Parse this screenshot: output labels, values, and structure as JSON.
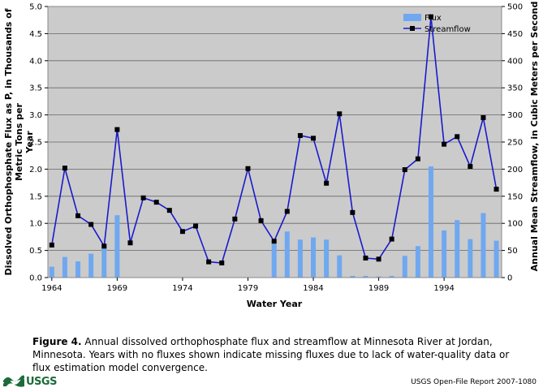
{
  "chart_data": {
    "type": "bar+line",
    "xlabel": "Water Year",
    "ylabel_left": "Dissolved Orthophosphate Flux as P, in Thousands of Metric Tons per Year",
    "ylabel_left_lines": [
      "Dissolved Orthophosphate Flux as P, in Thousands of",
      "Metric Tons per",
      "Year"
    ],
    "ylabel_right": "Annual Mean Streamflow, in Cubic Meters per Second",
    "ylim_left": [
      0,
      5
    ],
    "ylim_right": [
      0,
      500
    ],
    "xlim": [
      1963.7,
      1998.4
    ],
    "x_ticks": [
      1964,
      1969,
      1974,
      1979,
      1984,
      1989,
      1994
    ],
    "y_left_ticks": [
      "0.0",
      "0.5",
      "1.0",
      "1.5",
      "2.0",
      "2.5",
      "3.0",
      "3.5",
      "4.0",
      "4.5",
      "5.0"
    ],
    "y_right_ticks": [
      "0",
      "50",
      "100",
      "150",
      "200",
      "250",
      "300",
      "350",
      "400",
      "450",
      "500"
    ],
    "grid": "horizontal",
    "legend_position": "top-right",
    "colors": {
      "plot_bg": "#cbcbcb",
      "flux": "#6fa8f0",
      "streamflow": "#1a1acc",
      "marker": "#000000"
    },
    "series": [
      {
        "name": "Flux",
        "kind": "bar",
        "axis": "left",
        "x": [
          1964,
          1965,
          1966,
          1967,
          1968,
          1969,
          1981,
          1982,
          1983,
          1984,
          1985,
          1986,
          1987,
          1988,
          1989,
          1990,
          1991,
          1992,
          1993,
          1994,
          1995,
          1996,
          1997,
          1998
        ],
        "values": [
          0.2,
          0.38,
          0.3,
          0.44,
          0.62,
          1.15,
          0.62,
          0.85,
          0.7,
          0.74,
          0.7,
          0.41,
          0.03,
          0.03,
          0.02,
          0.03,
          0.4,
          0.58,
          2.05,
          0.87,
          1.06,
          0.71,
          1.19,
          0.68
        ]
      },
      {
        "name": "Streamflow",
        "kind": "line",
        "axis": "right",
        "x": [
          1964,
          1965,
          1966,
          1967,
          1968,
          1969,
          1970,
          1971,
          1972,
          1973,
          1974,
          1975,
          1976,
          1977,
          1978,
          1979,
          1980,
          1981,
          1982,
          1983,
          1984,
          1985,
          1986,
          1987,
          1988,
          1989,
          1990,
          1991,
          1992,
          1993,
          1994,
          1995,
          1996,
          1997,
          1998
        ],
        "values": [
          60,
          202,
          114,
          98,
          58,
          273,
          64,
          147,
          139,
          124,
          85,
          95,
          29,
          27,
          108,
          201,
          105,
          67,
          122,
          262,
          257,
          174,
          302,
          120,
          36,
          34,
          71,
          199,
          219,
          481,
          246,
          260,
          205,
          295,
          163
        ]
      }
    ]
  },
  "caption": {
    "label": "Figure 4.",
    "text": "Annual dissolved orthophosphate flux and streamflow at Minnesota River at Jordan, Minnesota. Years with no fluxes shown indicate missing fluxes due to lack of water-quality data or flux estimation model convergence."
  },
  "footer": {
    "logo_text": "USGS",
    "report": "USGS Open-File Report 2007-1080"
  }
}
